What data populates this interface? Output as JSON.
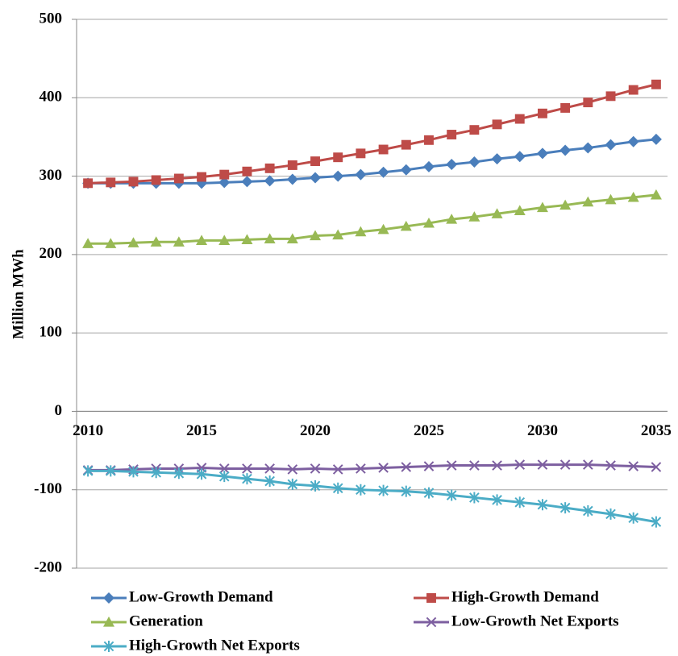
{
  "chart_data": {
    "type": "line",
    "y_label": "Million MWh",
    "x": [
      2010,
      2011,
      2012,
      2013,
      2014,
      2015,
      2016,
      2017,
      2018,
      2019,
      2020,
      2021,
      2022,
      2023,
      2024,
      2025,
      2026,
      2027,
      2028,
      2029,
      2030,
      2031,
      2032,
      2033,
      2034,
      2035
    ],
    "xlim": [
      2009.5,
      2035.5
    ],
    "xticks": [
      2010,
      2015,
      2020,
      2025,
      2030,
      2035
    ],
    "ylim": [
      -200,
      500
    ],
    "yticks": [
      -200,
      -100,
      0,
      100,
      200,
      300,
      400,
      500
    ],
    "grid": true,
    "legend": "bottom",
    "series": [
      {
        "name": "Low-Growth Demand",
        "color": "#4a7ebb",
        "marker": "diamond",
        "values": [
          291,
          291,
          291,
          291,
          291,
          291,
          292,
          293,
          294,
          296,
          298,
          300,
          302,
          305,
          308,
          312,
          315,
          318,
          322,
          325,
          329,
          333,
          336,
          340,
          344,
          347
        ]
      },
      {
        "name": "High-Growth Demand",
        "color": "#be4b48",
        "marker": "square",
        "values": [
          291,
          292,
          293,
          295,
          297,
          299,
          302,
          306,
          310,
          314,
          319,
          324,
          329,
          334,
          340,
          346,
          353,
          359,
          366,
          373,
          380,
          387,
          394,
          402,
          410,
          417
        ]
      },
      {
        "name": "Generation",
        "color": "#98b954",
        "marker": "triangle",
        "values": [
          214,
          214,
          215,
          216,
          216,
          218,
          218,
          219,
          220,
          220,
          224,
          225,
          229,
          232,
          236,
          240,
          245,
          248,
          252,
          256,
          260,
          263,
          267,
          270,
          273,
          276
        ]
      },
      {
        "name": "Low-Growth Net Exports",
        "color": "#7d5fa0",
        "marker": "x",
        "values": [
          -75,
          -75,
          -74,
          -73,
          -73,
          -72,
          -73,
          -73,
          -73,
          -74,
          -73,
          -74,
          -73,
          -72,
          -71,
          -70,
          -69,
          -69,
          -69,
          -68,
          -68,
          -68,
          -68,
          -69,
          -70,
          -71
        ]
      },
      {
        "name": "High-Growth Net Exports",
        "color": "#4bacc6",
        "marker": "asterisk",
        "values": [
          -76,
          -76,
          -77,
          -78,
          -79,
          -80,
          -83,
          -86,
          -89,
          -93,
          -95,
          -98,
          -100,
          -101,
          -102,
          -104,
          -107,
          -110,
          -113,
          -116,
          -119,
          -123,
          -127,
          -131,
          -136,
          -141
        ]
      }
    ]
  }
}
